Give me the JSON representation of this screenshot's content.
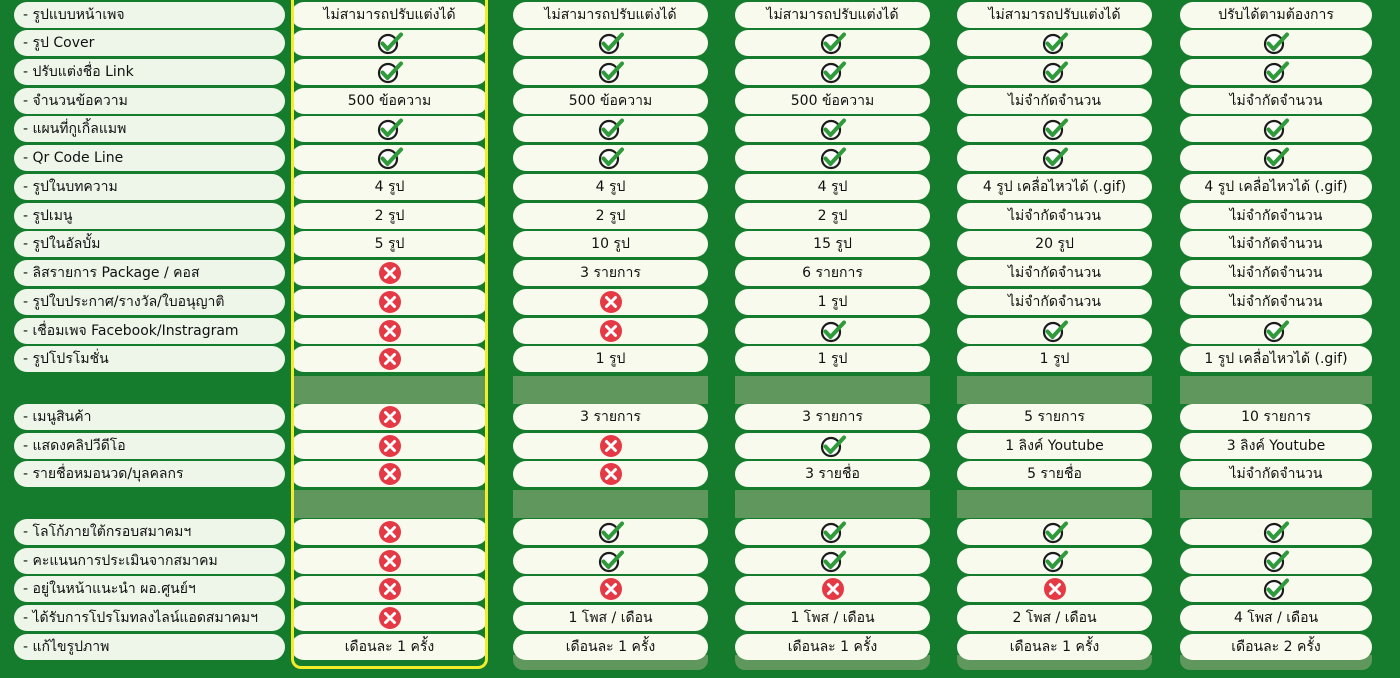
{
  "colors": {
    "background": "#167c2d",
    "band": "#5f975c",
    "highlight": "#f3ec2b",
    "check": "#2e9a3a",
    "cross": "#e53945"
  },
  "rows": [
    {
      "label": "- รูปแบบหน้าเพจ",
      "cells": [
        "ไม่สามารถปรับแต่งได้",
        "ไม่สามารถปรับแต่งได้",
        "ไม่สามารถปรับแต่งได้",
        "ไม่สามารถปรับแต่งได้",
        "ปรับได้ตามต้องการ"
      ]
    },
    {
      "label": "- รูป Cover",
      "cells": [
        "check",
        "check",
        "check",
        "check",
        "check"
      ]
    },
    {
      "label": "- ปรับแต่งชื่อ Link",
      "cells": [
        "check",
        "check",
        "check",
        "check",
        "check"
      ]
    },
    {
      "label": "- จำนวนข้อความ",
      "cells": [
        "500 ข้อความ",
        "500 ข้อความ",
        "500 ข้อความ",
        "ไม่จำกัดจำนวน",
        "ไม่จำกัดจำนวน"
      ]
    },
    {
      "label": "- แผนที่กูเกิ้ลแมพ",
      "cells": [
        "check",
        "check",
        "check",
        "check",
        "check"
      ]
    },
    {
      "label": "- Qr Code Line",
      "cells": [
        "check",
        "check",
        "check",
        "check",
        "check"
      ]
    },
    {
      "label": "- รูปในบทความ",
      "cells": [
        "4 รูป",
        "4 รูป",
        "4 รูป",
        "4 รูป เคลื่อไหวได้ (.gif)",
        "4 รูป เคลื่อไหวได้ (.gif)"
      ]
    },
    {
      "label": "- รูปเมนู",
      "cells": [
        "2 รูป",
        "2 รูป",
        "2 รูป",
        "ไม่จำกัดจำนวน",
        "ไม่จำกัดจำนวน"
      ]
    },
    {
      "label": "- รูปในอัลบั้ม",
      "cells": [
        "5 รูป",
        "10 รูป",
        "15 รูป",
        "20 รูป",
        "ไม่จำกัดจำนวน"
      ]
    },
    {
      "label": "- ลิสรายการ Package / คอส",
      "cells": [
        "cross",
        "3 รายการ",
        "6 รายการ",
        "ไม่จำกัดจำนวน",
        "ไม่จำกัดจำนวน"
      ]
    },
    {
      "label": "- รูปใบประกาศ/รางวัล/ใบอนุญาติ",
      "cells": [
        "cross",
        "cross",
        "1 รูป",
        "ไม่จำกัดจำนวน",
        "ไม่จำกัดจำนวน"
      ]
    },
    {
      "label": "- เชื่อมเพจ Facebook/Instragram",
      "cells": [
        "cross",
        "cross",
        "check",
        "check",
        "check"
      ]
    },
    {
      "label": "- รูปโปรโมชั่น",
      "cells": [
        "cross",
        "1 รูป",
        "1 รูป",
        "1 รูป",
        "1 รูป เคลื่อไหวได้ (.gif)"
      ]
    },
    {
      "label": "- เมนูสินค้า",
      "cells": [
        "cross",
        "3 รายการ",
        "3 รายการ",
        "5 รายการ",
        "10 รายการ"
      ]
    },
    {
      "label": "- แสดงคลิปวีดีโอ",
      "cells": [
        "cross",
        "cross",
        "check",
        "1 ลิงค์ Youtube",
        "3 ลิงค์ Youtube"
      ]
    },
    {
      "label": "- รายชื่อหมอนวด/บุลคลกร",
      "cells": [
        "cross",
        "cross",
        "3 รายชื่อ",
        "5 รายชื่อ",
        "ไม่จำกัดจำนวน"
      ]
    },
    {
      "label": "- โลโก้ภายใต้กรอบสมาคมฯ",
      "cells": [
        "cross",
        "check",
        "check",
        "check",
        "check"
      ]
    },
    {
      "label": "- คะแนนการประเมินจากสมาคม",
      "cells": [
        "cross",
        "check",
        "check",
        "check",
        "check"
      ]
    },
    {
      "label": "- อยู่ในหน้าแนะนำ ผอ.ศูนย์ฯ",
      "cells": [
        "cross",
        "cross",
        "cross",
        "cross",
        "check"
      ]
    },
    {
      "label": "- ได้รับการโปรโมทลงไลน์แอดสมาคมฯ",
      "cells": [
        "cross",
        "1 โพส / เดือน",
        "1 โพส / เดือน",
        "2 โพส / เดือน",
        "4 โพส / เดือน"
      ]
    },
    {
      "label": "- แก้ไขรูปภาพ",
      "cells": [
        "เดือนละ 1 ครั้ง",
        "เดือนละ 1 ครั้ง",
        "เดือนละ 1 ครั้ง",
        "เดือนละ 1 ครั้ง",
        "เดือนละ 2 ครั้ง"
      ]
    }
  ]
}
